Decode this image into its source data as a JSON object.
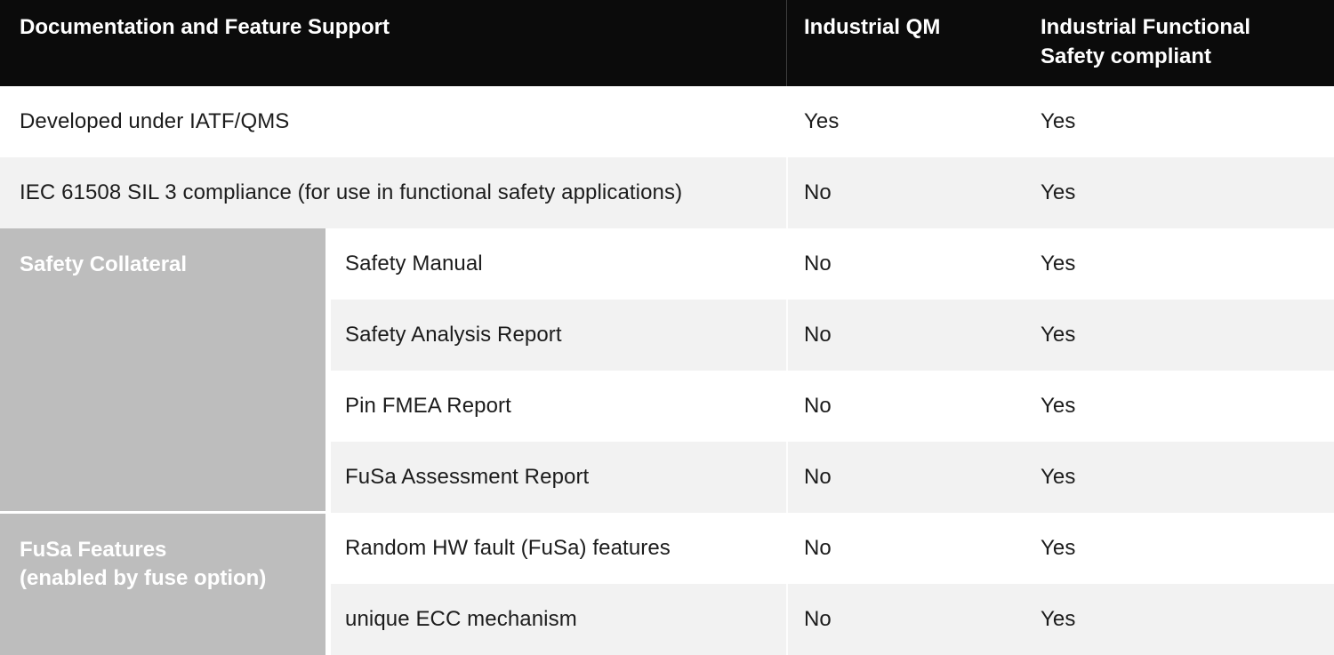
{
  "header": {
    "feature_col": "Documentation and Feature Support",
    "qm_col": "Industrial QM",
    "fusa_col": "Industrial Functional Safety compliant"
  },
  "sections": [
    {
      "label": "Safety Collateral",
      "lines": [
        "Safety Collateral"
      ],
      "row_indexes": [
        2,
        3,
        4,
        5
      ]
    },
    {
      "label": "FuSa Features (enabled by fuse option)",
      "lines": [
        "FuSa Features",
        "(enabled by fuse option)"
      ],
      "row_indexes": [
        6,
        7
      ]
    }
  ],
  "rows": [
    {
      "group": null,
      "feature": "Developed under IATF/QMS",
      "qm": "Yes",
      "fusa": "Yes"
    },
    {
      "group": null,
      "feature": "IEC 61508 SIL 3 compliance (for use in functional safety applications)",
      "qm": "No",
      "fusa": "Yes"
    },
    {
      "group": "Safety Collateral",
      "feature": "Safety Manual",
      "qm": "No",
      "fusa": "Yes"
    },
    {
      "group": "Safety Collateral",
      "feature": "Safety Analysis Report",
      "qm": "No",
      "fusa": "Yes"
    },
    {
      "group": "Safety Collateral",
      "feature": "Pin FMEA Report",
      "qm": "No",
      "fusa": "Yes"
    },
    {
      "group": "Safety Collateral",
      "feature": "FuSa Assessment Report",
      "qm": "No",
      "fusa": "Yes"
    },
    {
      "group": "FuSa Features (enabled by fuse option)",
      "feature": "Random HW fault (FuSa) features",
      "qm": "No",
      "fusa": "Yes"
    },
    {
      "group": "FuSa Features (enabled by fuse option)",
      "feature": "unique ECC mechanism",
      "qm": "No",
      "fusa": "Yes"
    }
  ],
  "chart_data": {
    "type": "table",
    "title": "Documentation and Feature Support",
    "columns": [
      "Documentation and Feature Support",
      "Industrial QM",
      "Industrial Functional Safety compliant"
    ],
    "rows": [
      {
        "group": "",
        "feature": "Developed under IATF/QMS",
        "industrial_qm": "Yes",
        "industrial_functional_safety_compliant": "Yes"
      },
      {
        "group": "",
        "feature": "IEC 61508 SIL 3 compliance (for use in functional safety applications)",
        "industrial_qm": "No",
        "industrial_functional_safety_compliant": "Yes"
      },
      {
        "group": "Safety Collateral",
        "feature": "Safety Manual",
        "industrial_qm": "No",
        "industrial_functional_safety_compliant": "Yes"
      },
      {
        "group": "Safety Collateral",
        "feature": "Safety Analysis Report",
        "industrial_qm": "No",
        "industrial_functional_safety_compliant": "Yes"
      },
      {
        "group": "Safety Collateral",
        "feature": "Pin FMEA Report",
        "industrial_qm": "No",
        "industrial_functional_safety_compliant": "Yes"
      },
      {
        "group": "Safety Collateral",
        "feature": "FuSa Assessment Report",
        "industrial_qm": "No",
        "industrial_functional_safety_compliant": "Yes"
      },
      {
        "group": "FuSa Features (enabled by fuse option)",
        "feature": "Random HW fault (FuSa) features",
        "industrial_qm": "No",
        "industrial_functional_safety_compliant": "Yes"
      },
      {
        "group": "FuSa Features (enabled by fuse option)",
        "feature": "unique ECC mechanism",
        "industrial_qm": "No",
        "industrial_functional_safety_compliant": "Yes"
      }
    ]
  },
  "colors": {
    "header_bg": "#0b0b0b",
    "header_divider": "#3d3d3d",
    "row_alt_bg": "#f2f2f2",
    "section_bg": "#bdbdbd",
    "body_text": "#1c1c1c",
    "header_text": "#ffffff"
  }
}
